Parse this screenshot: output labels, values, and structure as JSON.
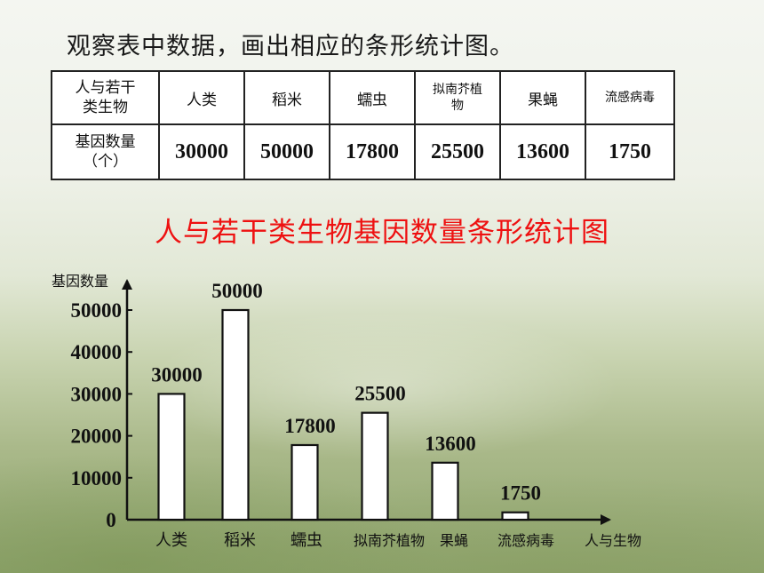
{
  "instruction": "观察表中数据，画出相应的条形统计图。",
  "table": {
    "header_label_line1": "人与若干",
    "header_label_line2": "类生物",
    "columns": [
      "人类",
      "稻米",
      "蠕虫",
      "拟南芥植",
      "果蝇",
      "流感病毒"
    ],
    "column_4_line2": "物",
    "row_label_line1": "基因数量",
    "row_label_line2": "（个）",
    "values": [
      "30000",
      "50000",
      "17800",
      "25500",
      "13600",
      "1750"
    ]
  },
  "chart_data": {
    "type": "bar",
    "title": "人与若干类生物基因数量条形统计图",
    "ylabel": "基因数量",
    "xlabel": "人与生物",
    "categories": [
      "人类",
      "稻米",
      "蠕虫",
      "拟南芥植物",
      "果蝇",
      "流感病毒"
    ],
    "values": [
      30000,
      50000,
      17800,
      25500,
      13600,
      1750
    ],
    "value_labels": [
      "30000",
      "50000",
      "17800",
      "25500",
      "13600",
      "1750"
    ],
    "y_ticks": [
      "0",
      "10000",
      "20000",
      "30000",
      "40000",
      "50000"
    ],
    "y_tick_values": [
      0,
      10000,
      20000,
      30000,
      40000,
      50000
    ],
    "ylim": [
      0,
      50000
    ],
    "grid": false,
    "legend": "none"
  },
  "colors": {
    "title": "#ee1111",
    "bar_fill": "#ffffff",
    "bar_stroke": "#111111"
  }
}
